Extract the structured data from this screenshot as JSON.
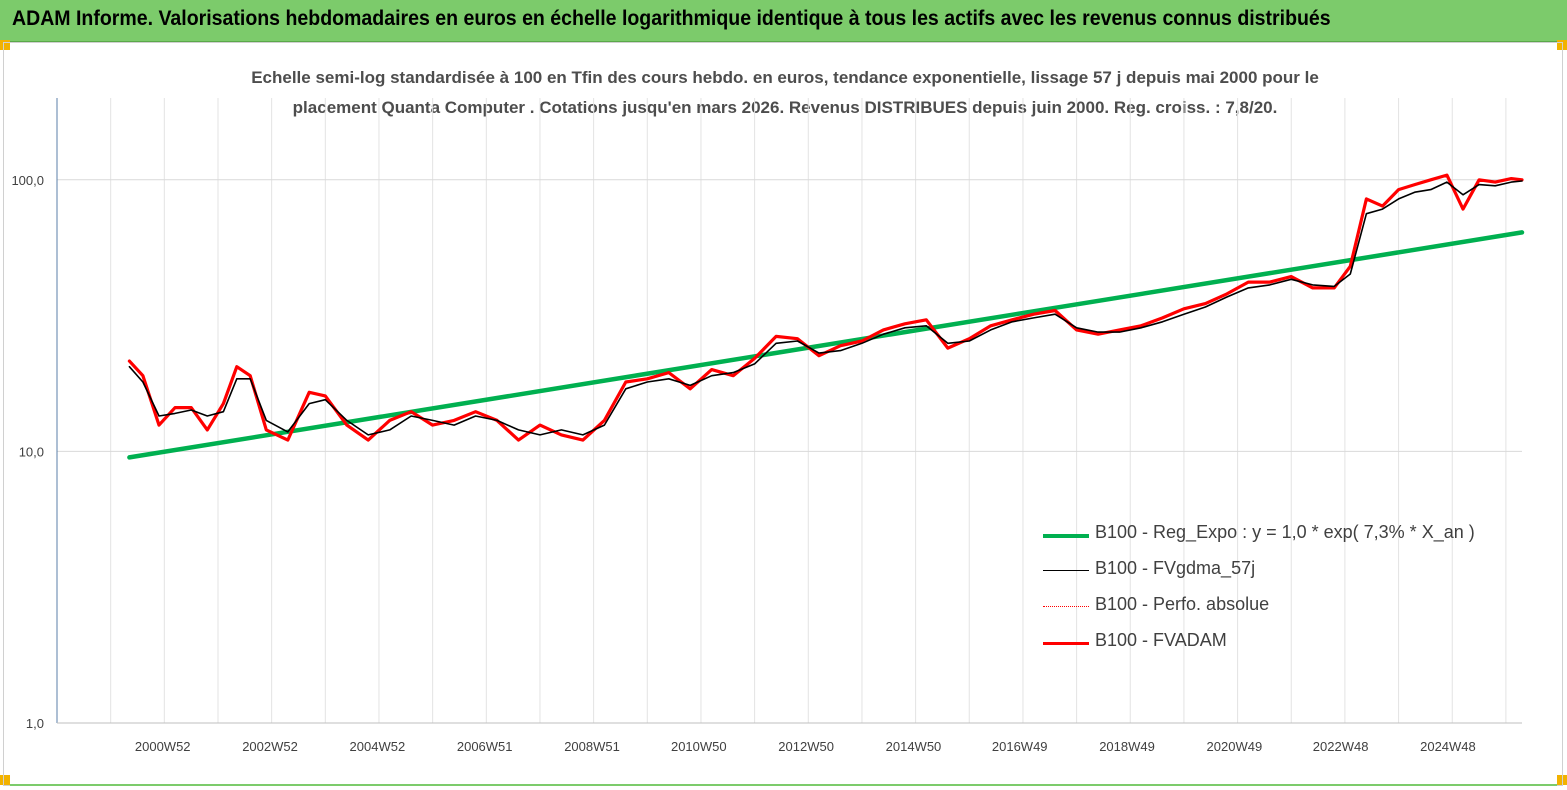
{
  "header": {
    "title": "ADAM Informe. Valorisations hebdomadaires en euros en échelle logarithmique identique à tous les actifs avec les revenus connus distribués"
  },
  "colors": {
    "header_bg": "#7ccb6b",
    "accent_corner": "#f2b200",
    "trend": "#00b050",
    "smooth": "#000000",
    "perf": "#ff0000",
    "fvadam": "#ff0000"
  },
  "chart_data": {
    "type": "line",
    "title_line1": "Echelle semi-log standardisée à 100 en Tfin des cours hebdo. en euros, tendance exponentielle, lissage 57 j depuis mai 2000 pour le",
    "title_line2": "placement Quanta Computer . Cotations jusqu'en mars 2026. Revenus DISTRIBUES depuis juin 2000. Reg. croiss. : 7,8/20.",
    "y_scale": "log",
    "ylim": [
      1,
      200
    ],
    "y_ticks": [
      1,
      10,
      100
    ],
    "y_tick_labels": [
      "1,0",
      "10,0",
      "100,0"
    ],
    "xlim": [
      1999.0,
      2026.3
    ],
    "x_ticks": [
      2000.97,
      2002.97,
      2004.97,
      2006.97,
      2008.97,
      2010.96,
      2012.96,
      2014.96,
      2016.94,
      2018.94,
      2020.94,
      2022.92,
      2024.92
    ],
    "x_tick_labels": [
      "2000W52",
      "2002W52",
      "2004W52",
      "2006W51",
      "2008W51",
      "2010W50",
      "2012W50",
      "2014W50",
      "2016W49",
      "2018W49",
      "2020W49",
      "2022W48",
      "2024W48"
    ],
    "grid": {
      "vertical": true,
      "horizontal": true
    },
    "legend_position": "lower-right",
    "series": [
      {
        "name": "B100 - Reg_Expo : y = 1,0 * exp( 7,3% *  X_an )",
        "style": "trend",
        "x": [
          2000.35,
          2026.3
        ],
        "y": [
          9.5,
          64.0
        ]
      },
      {
        "name": "B100 - FVgdma_57j",
        "style": "smooth",
        "x": [
          2000.35,
          2000.6,
          2000.9,
          2001.2,
          2001.5,
          2001.8,
          2002.1,
          2002.35,
          2002.6,
          2002.9,
          2003.3,
          2003.7,
          2004.0,
          2004.4,
          2004.8,
          2005.2,
          2005.6,
          2006.0,
          2006.4,
          2006.8,
          2007.2,
          2007.6,
          2008.0,
          2008.4,
          2008.8,
          2009.2,
          2009.6,
          2010.0,
          2010.4,
          2010.8,
          2011.2,
          2011.6,
          2012.0,
          2012.4,
          2012.8,
          2013.2,
          2013.6,
          2014.0,
          2014.4,
          2014.8,
          2015.2,
          2015.6,
          2016.0,
          2016.4,
          2016.8,
          2017.2,
          2017.6,
          2018.0,
          2018.4,
          2018.8,
          2019.2,
          2019.6,
          2020.0,
          2020.4,
          2020.8,
          2021.2,
          2021.6,
          2022.0,
          2022.4,
          2022.8,
          2023.1,
          2023.4,
          2023.7,
          2024.0,
          2024.3,
          2024.6,
          2024.9,
          2025.2,
          2025.5,
          2025.8,
          2026.1,
          2026.3
        ],
        "y": [
          20.5,
          18.0,
          13.5,
          13.8,
          14.2,
          13.5,
          14.0,
          18.5,
          18.5,
          13.0,
          11.8,
          15.0,
          15.5,
          13.0,
          11.5,
          12.0,
          13.5,
          13.0,
          12.5,
          13.5,
          13.0,
          12.0,
          11.5,
          12.0,
          11.5,
          12.5,
          17.0,
          18.0,
          18.5,
          17.5,
          19.0,
          19.5,
          21.0,
          25.0,
          25.5,
          23.0,
          23.5,
          25.0,
          27.0,
          28.5,
          29.0,
          25.0,
          25.5,
          28.0,
          30.0,
          31.0,
          32.0,
          28.5,
          27.5,
          27.5,
          28.5,
          30.0,
          32.0,
          34.0,
          37.0,
          40.0,
          41.0,
          43.0,
          41.0,
          40.5,
          45.0,
          75.0,
          78.0,
          85.0,
          90.0,
          92.0,
          98.0,
          88.0,
          96.0,
          95.0,
          98.0,
          99.0
        ]
      },
      {
        "name": "B100 - Perfo. absolue",
        "style": "perf",
        "x": [
          2000.35,
          2000.6,
          2000.9,
          2001.2,
          2001.5,
          2001.8,
          2002.1,
          2002.35,
          2002.6,
          2002.9,
          2003.3,
          2003.7,
          2004.0,
          2004.4,
          2004.8,
          2005.2,
          2005.6,
          2006.0,
          2006.4,
          2006.8,
          2007.2,
          2007.6,
          2008.0,
          2008.4,
          2008.8,
          2009.2,
          2009.6,
          2010.0,
          2010.4,
          2010.8,
          2011.2,
          2011.6,
          2012.0,
          2012.4,
          2012.8,
          2013.2,
          2013.6,
          2014.0,
          2014.4,
          2014.8,
          2015.2,
          2015.6,
          2016.0,
          2016.4,
          2016.8,
          2017.2,
          2017.6,
          2018.0,
          2018.4,
          2018.8,
          2019.2,
          2019.6,
          2020.0,
          2020.4,
          2020.8,
          2021.2,
          2021.6,
          2022.0,
          2022.4,
          2022.8,
          2023.1,
          2023.4,
          2023.7,
          2024.0,
          2024.3,
          2024.6,
          2024.9,
          2025.2,
          2025.5,
          2025.8,
          2026.1,
          2026.3
        ],
        "y": [
          21.5,
          19.0,
          12.5,
          14.5,
          14.5,
          12.0,
          15.0,
          20.5,
          19.0,
          12.0,
          11.0,
          16.5,
          16.0,
          12.5,
          11.0,
          13.0,
          14.0,
          12.5,
          13.0,
          14.0,
          13.0,
          11.0,
          12.5,
          11.5,
          11.0,
          13.0,
          18.0,
          18.5,
          19.5,
          17.0,
          20.0,
          19.0,
          22.0,
          26.5,
          26.0,
          22.5,
          24.5,
          25.5,
          28.0,
          29.5,
          30.5,
          24.0,
          26.0,
          29.0,
          30.5,
          32.0,
          33.0,
          28.0,
          27.0,
          28.0,
          29.0,
          31.0,
          33.5,
          35.0,
          38.0,
          42.0,
          42.0,
          44.0,
          40.0,
          40.0,
          48.0,
          85.0,
          80.0,
          92.0,
          96.0,
          100.0,
          104.0,
          78.0,
          100.0,
          98.0,
          101.0,
          100.0
        ]
      },
      {
        "name": "B100 - FVADAM",
        "style": "fvadam",
        "x": [
          2000.35,
          2000.6,
          2000.9,
          2001.2,
          2001.5,
          2001.8,
          2002.1,
          2002.35,
          2002.6,
          2002.9,
          2003.3,
          2003.7,
          2004.0,
          2004.4,
          2004.8,
          2005.2,
          2005.6,
          2006.0,
          2006.4,
          2006.8,
          2007.2,
          2007.6,
          2008.0,
          2008.4,
          2008.8,
          2009.2,
          2009.6,
          2010.0,
          2010.4,
          2010.8,
          2011.2,
          2011.6,
          2012.0,
          2012.4,
          2012.8,
          2013.2,
          2013.6,
          2014.0,
          2014.4,
          2014.8,
          2015.2,
          2015.6,
          2016.0,
          2016.4,
          2016.8,
          2017.2,
          2017.6,
          2018.0,
          2018.4,
          2018.8,
          2019.2,
          2019.6,
          2020.0,
          2020.4,
          2020.8,
          2021.2,
          2021.6,
          2022.0,
          2022.4,
          2022.8,
          2023.1,
          2023.4,
          2023.7,
          2024.0,
          2024.3,
          2024.6,
          2024.9,
          2025.2,
          2025.5,
          2025.8,
          2026.1,
          2026.3
        ],
        "y": [
          21.5,
          19.0,
          12.5,
          14.5,
          14.5,
          12.0,
          15.0,
          20.5,
          19.0,
          12.0,
          11.0,
          16.5,
          16.0,
          12.5,
          11.0,
          13.0,
          14.0,
          12.5,
          13.0,
          14.0,
          13.0,
          11.0,
          12.5,
          11.5,
          11.0,
          13.0,
          18.0,
          18.5,
          19.5,
          17.0,
          20.0,
          19.0,
          22.0,
          26.5,
          26.0,
          22.5,
          24.5,
          25.5,
          28.0,
          29.5,
          30.5,
          24.0,
          26.0,
          29.0,
          30.5,
          32.0,
          33.0,
          28.0,
          27.0,
          28.0,
          29.0,
          31.0,
          33.5,
          35.0,
          38.0,
          42.0,
          42.0,
          44.0,
          40.0,
          40.0,
          48.0,
          85.0,
          80.0,
          92.0,
          96.0,
          100.0,
          104.0,
          78.0,
          100.0,
          98.0,
          101.0,
          100.0
        ]
      }
    ]
  }
}
